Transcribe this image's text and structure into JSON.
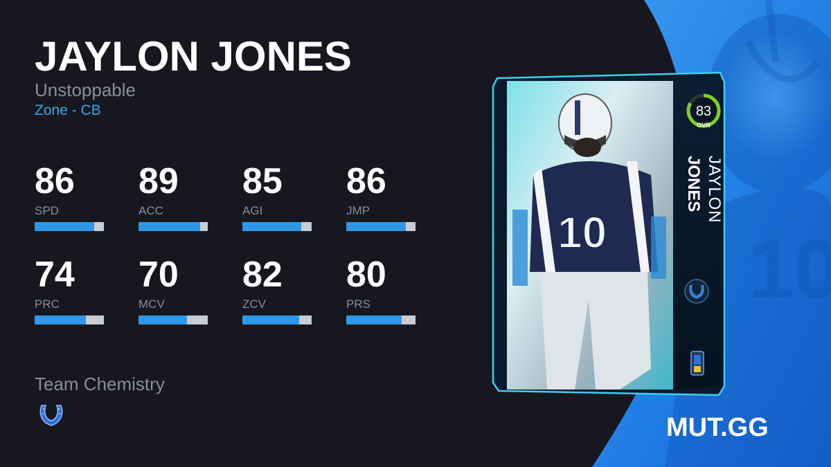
{
  "player": {
    "name": "JAYLON JONES",
    "first_name": "JAYLON",
    "last_name": "JONES",
    "program": "Unstoppable",
    "archetype": "Zone - CB"
  },
  "stats": [
    {
      "value": "86",
      "label": "SPD",
      "level": 0.86
    },
    {
      "value": "89",
      "label": "ACC",
      "level": 0.89
    },
    {
      "value": "85",
      "label": "AGI",
      "level": 0.85
    },
    {
      "value": "86",
      "label": "JMP",
      "level": 0.86
    },
    {
      "value": "74",
      "label": "PRC",
      "level": 0.74
    },
    {
      "value": "70",
      "label": "MCV",
      "level": 0.7
    },
    {
      "value": "82",
      "label": "ZCV",
      "level": 0.82
    },
    {
      "value": "80",
      "label": "PRS",
      "level": 0.8
    }
  ],
  "team_chemistry": {
    "label": "Team Chemistry",
    "icon": "horseshoe-icon"
  },
  "card": {
    "ovr": "83",
    "ovr_label": "OVR",
    "team_logo": "horseshoe-icon",
    "program_logo": "program-badge-icon"
  },
  "brand": "MUT.GG",
  "colors": {
    "background": "#16171f",
    "accent_blue": "#2f97e8",
    "archetype_text": "#3aa6ef",
    "muted_text": "#8b8e9a",
    "ovr_ring": "#7ccf2a"
  }
}
